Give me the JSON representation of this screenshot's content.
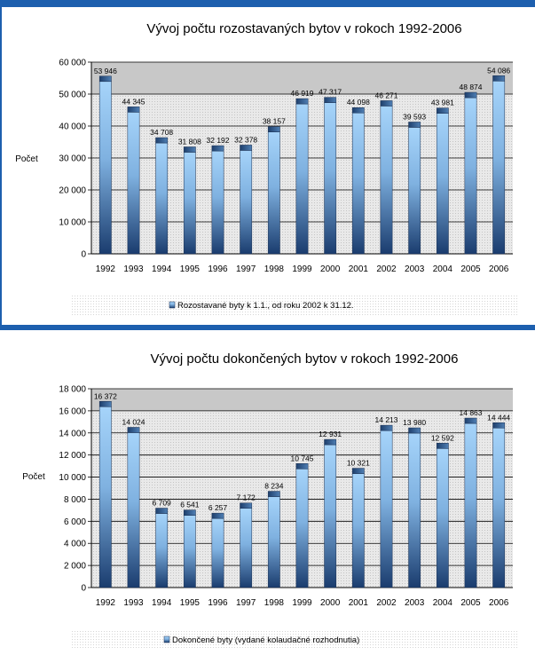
{
  "chart_data": [
    {
      "type": "bar",
      "title": "Vývoj počtu rozostavaných bytov v rokoch 1992-2006",
      "ylabel": "Počet",
      "xlabel": "",
      "categories": [
        "1992",
        "1993",
        "1994",
        "1995",
        "1996",
        "1997",
        "1998",
        "1999",
        "2000",
        "2001",
        "2002",
        "2003",
        "2004",
        "2005",
        "2006"
      ],
      "series": [
        {
          "name": "Rozostavané byty k 1.1., od roku 2002 k 31.12.",
          "values": [
            53946,
            44345,
            34708,
            31808,
            32192,
            32378,
            38157,
            46919,
            47317,
            44098,
            46271,
            39593,
            43981,
            48874,
            54086
          ],
          "labels": [
            "53 946",
            "44 345",
            "34 708",
            "31 808",
            "32 192",
            "32 378",
            "38 157",
            "46 919",
            "47 317",
            "44 098",
            "46 271",
            "39 593",
            "43 981",
            "48 874",
            "54 086"
          ]
        }
      ],
      "ylim": [
        0,
        60000
      ],
      "yticks": [
        "0",
        "10 000",
        "20 000",
        "30 000",
        "40 000",
        "50 000",
        "60 000"
      ],
      "grid": true,
      "legend_position": "bottom",
      "colors": {
        "plot_background": "#c8c8c8",
        "bar_light": "#9dcdf5",
        "bar_dark": "#1b3e70",
        "gridline": "#000000"
      }
    },
    {
      "type": "bar",
      "title": "Vývoj počtu dokončených bytov v rokoch 1992-2006",
      "ylabel": "Počet",
      "xlabel": "",
      "categories": [
        "1992",
        "1993",
        "1994",
        "1995",
        "1996",
        "1997",
        "1998",
        "1999",
        "2000",
        "2001",
        "2002",
        "2003",
        "2004",
        "2005",
        "2006"
      ],
      "series": [
        {
          "name": "Dokončené byty (vydané kolaudačné rozhodnutia)",
          "values": [
            16372,
            14024,
            6709,
            6541,
            6257,
            7172,
            8234,
            10745,
            12931,
            10321,
            14213,
            13980,
            12592,
            14863,
            14444
          ],
          "labels": [
            "16 372",
            "14 024",
            "6 709",
            "6 541",
            "6 257",
            "7 172",
            "8 234",
            "10 745",
            "12 931",
            "10 321",
            "14 213",
            "13 980",
            "12 592",
            "14 863",
            "14 444"
          ]
        }
      ],
      "ylim": [
        0,
        18000
      ],
      "yticks": [
        "0",
        "2 000",
        "4 000",
        "6 000",
        "8 000",
        "10 000",
        "12 000",
        "14 000",
        "16 000",
        "18 000"
      ],
      "grid": true,
      "legend_position": "bottom",
      "colors": {
        "plot_background": "#c8c8c8",
        "bar_light": "#9dcdf5",
        "bar_dark": "#1b3e70",
        "gridline": "#000000"
      }
    }
  ]
}
